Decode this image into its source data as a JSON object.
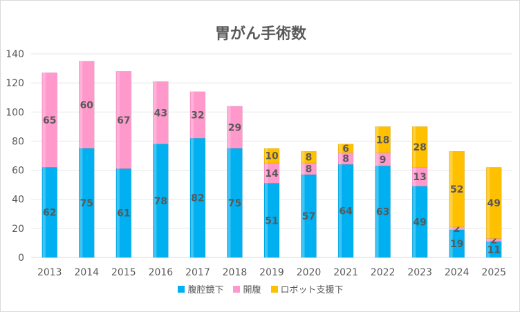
{
  "chart_data": {
    "type": "bar",
    "stacked": true,
    "title": "胃がん手術数",
    "categories": [
      "2013",
      "2014",
      "2015",
      "2016",
      "2017",
      "2018",
      "2019",
      "2020",
      "2021",
      "2022",
      "2023",
      "2024",
      "2025"
    ],
    "series": [
      {
        "name": "腹腔鏡下",
        "color": "#00b0f0",
        "values": [
          62,
          75,
          61,
          78,
          82,
          75,
          51,
          57,
          64,
          63,
          49,
          19,
          11
        ]
      },
      {
        "name": "開腹",
        "color": "#ff99cc",
        "values": [
          65,
          60,
          67,
          43,
          32,
          29,
          14,
          8,
          8,
          9,
          13,
          2,
          2
        ]
      },
      {
        "name": "ロボット支援下",
        "color": "#ffc000",
        "values": [
          0,
          0,
          0,
          0,
          0,
          0,
          10,
          8,
          6,
          18,
          28,
          52,
          49
        ]
      }
    ],
    "ylim": [
      0,
      140
    ],
    "yticks": [
      0,
      20,
      40,
      60,
      80,
      100,
      120,
      140
    ],
    "grid": true,
    "legend_position": "bottom"
  }
}
